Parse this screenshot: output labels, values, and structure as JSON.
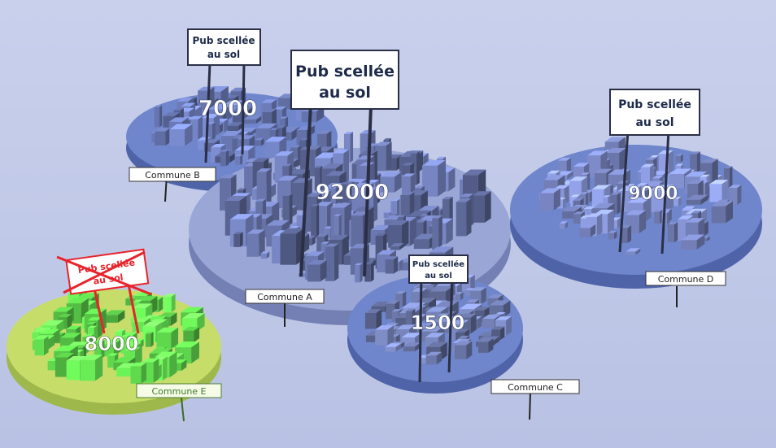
{
  "scene": {
    "colors": {
      "background": "#c3cbe8",
      "disk_blue": "#6f86cc",
      "disk_big": "#9aa6d6",
      "disk_green": "#c6dd6a",
      "building_blue": "#5f6c9c",
      "building_green": "#5fcf4a",
      "crossed_out": "#e8232a"
    },
    "communes": [
      {
        "id": "A",
        "name": "Commune A",
        "population": "92000",
        "sign": "Pub scellée au sol",
        "sign_line1": "Pub scellée",
        "sign_line2": "au sol",
        "sign_crossed": false
      },
      {
        "id": "B",
        "name": "Commune B",
        "population": "7000",
        "sign": "Pub scellée au sol",
        "sign_line1": "Pub scellée",
        "sign_line2": "au sol",
        "sign_crossed": false
      },
      {
        "id": "C",
        "name": "Commune C",
        "population": "1500",
        "sign": "Pub scellée au sol",
        "sign_line1": "Pub scellée",
        "sign_line2": "au sol",
        "sign_crossed": false
      },
      {
        "id": "D",
        "name": "Commune D",
        "population": "9000",
        "sign": "Pub scellée au sol",
        "sign_line1": "Pub scellée",
        "sign_line2": "au sol",
        "sign_crossed": false
      },
      {
        "id": "E",
        "name": "Commune E",
        "population": "8000",
        "sign": "Pub scellée au sol",
        "sign_line1": "Pub scellée",
        "sign_line2": "au sol",
        "sign_crossed": true
      }
    ]
  }
}
